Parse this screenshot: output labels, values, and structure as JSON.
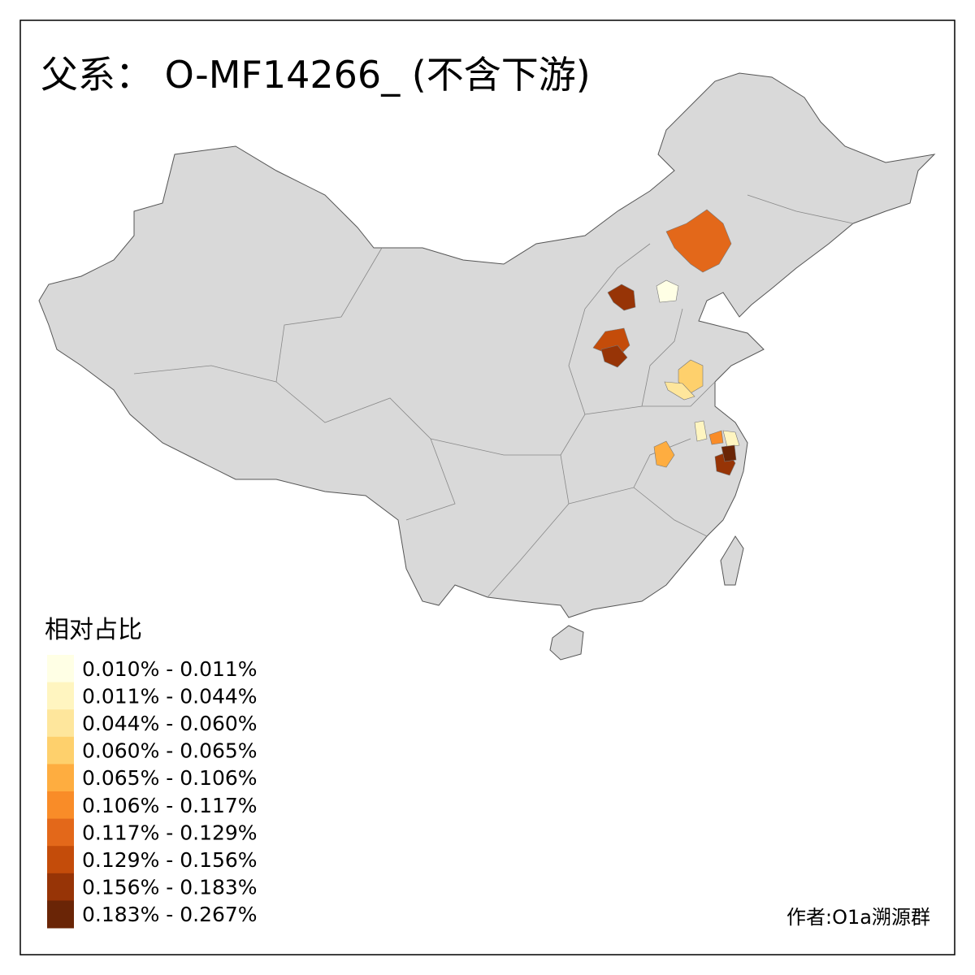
{
  "title": "父系： O-MF14266_ (不含下游)",
  "legend": {
    "title": "相对占比",
    "items": [
      {
        "label": "0.010% - 0.011%",
        "color": "#FFFFE5"
      },
      {
        "label": "0.011% - 0.044%",
        "color": "#FFF5C0"
      },
      {
        "label": "0.044% - 0.060%",
        "color": "#FEE69C"
      },
      {
        "label": "0.060% - 0.065%",
        "color": "#FED06C"
      },
      {
        "label": "0.065% - 0.106%",
        "color": "#FEAD40"
      },
      {
        "label": "0.106% - 0.117%",
        "color": "#F98C28"
      },
      {
        "label": "0.117% - 0.129%",
        "color": "#E3681A"
      },
      {
        "label": "0.129% - 0.156%",
        "color": "#C44C0A"
      },
      {
        "label": "0.156% - 0.183%",
        "color": "#973406"
      },
      {
        "label": "0.183% - 0.267%",
        "color": "#6A2506"
      }
    ]
  },
  "credit": "作者:O1a溯源群"
}
